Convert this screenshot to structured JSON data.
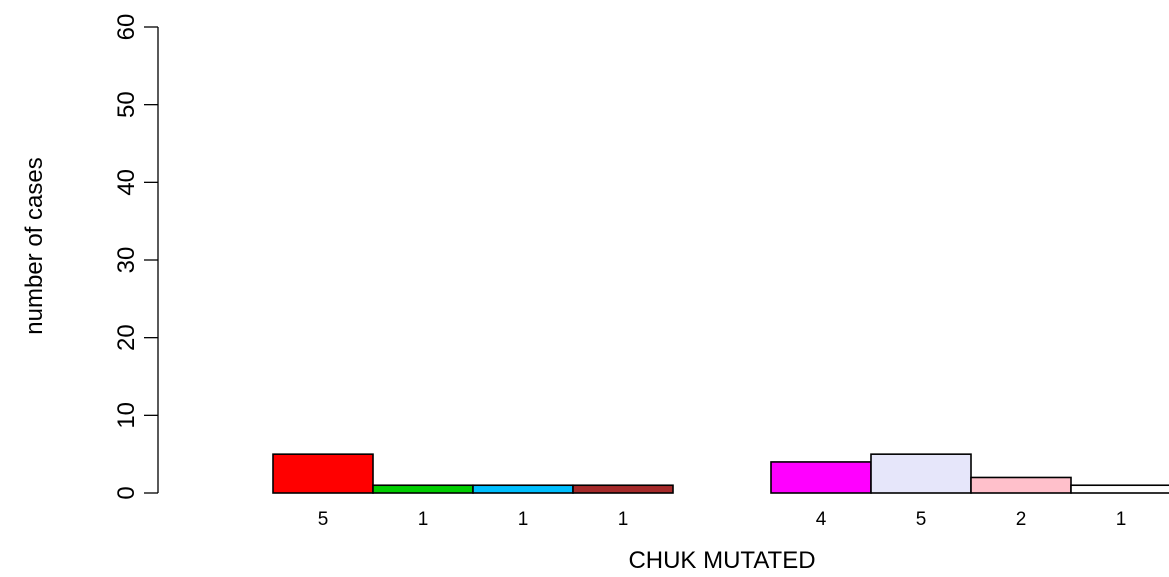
{
  "chart_data": {
    "type": "bar",
    "title": "",
    "xlabel": "CHUK MUTATED",
    "ylabel": "number of cases",
    "ylim": [
      0,
      60
    ],
    "yticks": [
      0,
      10,
      20,
      30,
      40,
      50,
      60
    ],
    "grid": false,
    "legend": "none",
    "groups": [
      {
        "bars": [
          {
            "value": 5,
            "label": "5",
            "color": "#ff0000"
          },
          {
            "value": 1,
            "label": "1",
            "color": "#00cd00"
          },
          {
            "value": 1,
            "label": "1",
            "color": "#00bfff"
          },
          {
            "value": 1,
            "label": "1",
            "color": "#a52a2a"
          }
        ]
      },
      {
        "bars": [
          {
            "value": 4,
            "label": "4",
            "color": "#ff00ff"
          },
          {
            "value": 5,
            "label": "5",
            "color": "#e6e6fa"
          },
          {
            "value": 2,
            "label": "2",
            "color": "#ffc0cb"
          },
          {
            "value": 1,
            "label": "1",
            "color": "#ffffff"
          }
        ]
      }
    ]
  }
}
